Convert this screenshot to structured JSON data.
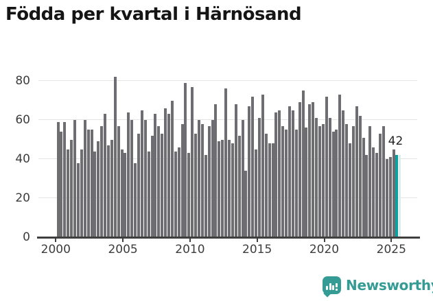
{
  "title": "Födda per kvartal i Härnösand",
  "chart_data": {
    "type": "bar",
    "title": "Födda per kvartal i Härnösand",
    "x_tick_labels": [
      "2000",
      "2005",
      "2010",
      "2015",
      "2020",
      "2025"
    ],
    "y_tick_labels": [
      "0",
      "20",
      "40",
      "60",
      "80"
    ],
    "y_ticks": [
      0,
      20,
      40,
      60,
      80
    ],
    "ylim": [
      0,
      86
    ],
    "grid": true,
    "period_start": "2000 Q1",
    "period_end": "2025 Q2",
    "frequency": "quarterly",
    "values": [
      59,
      54,
      59,
      45,
      50,
      60,
      38,
      45,
      60,
      55,
      55,
      44,
      49,
      57,
      63,
      47,
      50,
      82,
      57,
      45,
      43,
      64,
      60,
      38,
      53,
      65,
      60,
      44,
      52,
      63,
      57,
      53,
      66,
      63,
      70,
      44,
      46,
      58,
      79,
      43,
      77,
      53,
      60,
      58,
      42,
      57,
      60,
      68,
      49,
      50,
      76,
      50,
      48,
      68,
      52,
      60,
      34,
      67,
      72,
      45,
      61,
      73,
      53,
      48,
      48,
      64,
      65,
      57,
      55,
      67,
      65,
      55,
      69,
      75,
      56,
      68,
      69,
      61,
      57,
      58,
      72,
      61,
      54,
      55,
      73,
      65,
      58,
      48,
      57,
      67,
      62,
      51,
      42,
      57,
      46,
      43,
      53,
      57,
      40,
      41,
      45,
      42
    ],
    "bar_color": "#6e6e72",
    "highlight_color": "#0e9f9f",
    "highlight_label": "42",
    "highlight_value": 42,
    "trailing_pale_bar": {
      "value": 42,
      "color": "#d6eeee"
    },
    "grid_color": "#e4e4e4",
    "axis_color": "#3f3f3f"
  },
  "branding": {
    "name": "Newsworthy",
    "color": "#359b95"
  }
}
